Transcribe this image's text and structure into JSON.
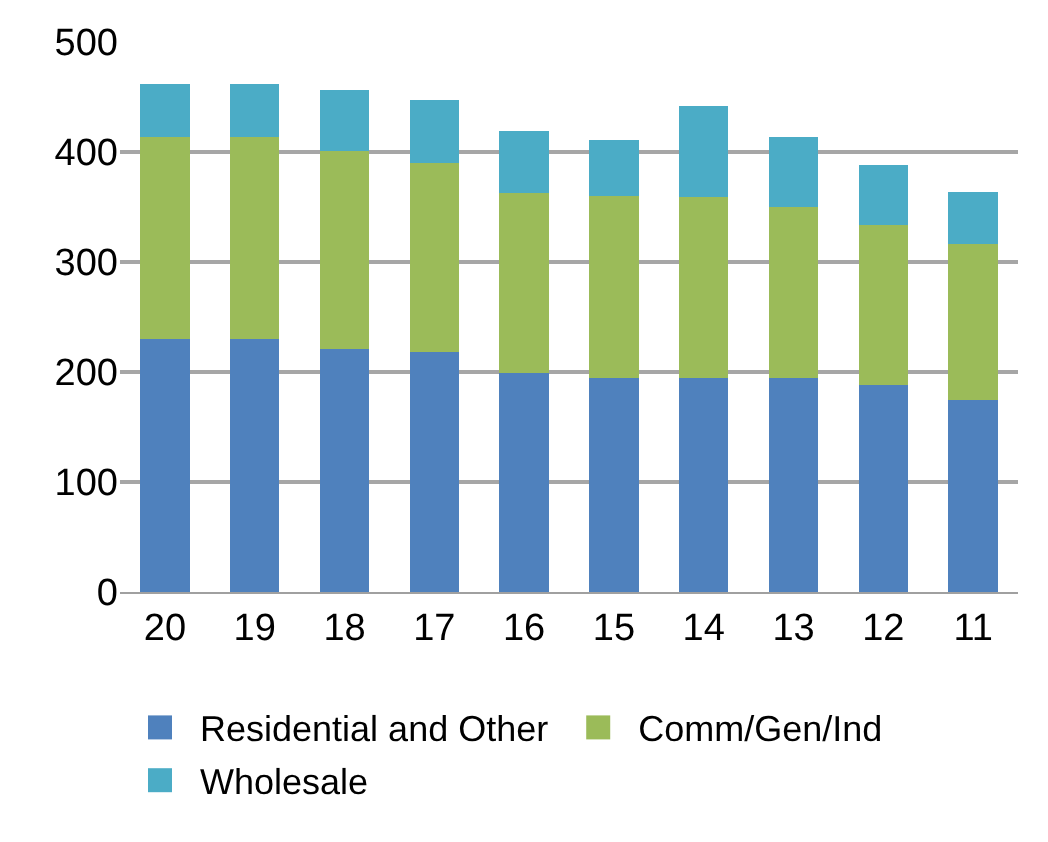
{
  "chart_data": {
    "type": "bar",
    "stacked": true,
    "categories": [
      "20",
      "19",
      "18",
      "17",
      "16",
      "15",
      "14",
      "13",
      "12",
      "11"
    ],
    "series": [
      {
        "name": "Residential and Other",
        "color": "#4f81bd",
        "values": [
          230,
          230,
          221,
          218,
          199,
          195,
          195,
          195,
          188,
          175
        ]
      },
      {
        "name": "Comm/Gen/Ind",
        "color": "#9bbb59",
        "values": [
          184,
          184,
          180,
          172,
          164,
          165,
          164,
          155,
          146,
          141
        ]
      },
      {
        "name": "Wholesale",
        "color": "#4bacc6",
        "values": [
          48,
          48,
          55,
          57,
          56,
          51,
          83,
          64,
          54,
          48
        ]
      }
    ],
    "ylim": [
      0,
      500
    ],
    "yticks": [
      0,
      100,
      200,
      300,
      400,
      500
    ],
    "grid": "y",
    "legend": "bottom"
  }
}
